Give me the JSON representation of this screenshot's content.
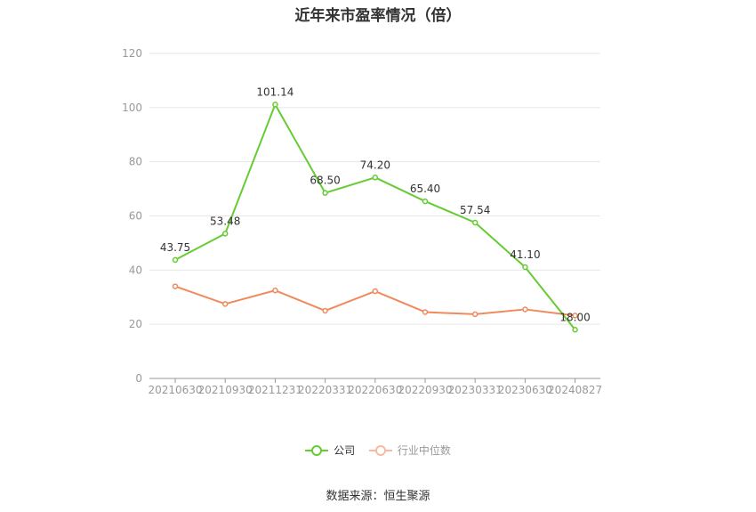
{
  "chart_data": {
    "type": "line",
    "title": "近年来市盈率情况（倍）",
    "categories": [
      "20210630",
      "20210930",
      "20211231",
      "20220331",
      "20220630",
      "20220930",
      "20230331",
      "20230630",
      "20240827"
    ],
    "series": [
      {
        "name": "公司",
        "values": [
          43.75,
          53.48,
          101.14,
          68.5,
          74.2,
          65.4,
          57.54,
          41.1,
          18.0
        ],
        "labels": [
          "43.75",
          "53.48",
          "101.14",
          "68.50",
          "74.20",
          "65.40",
          "57.54",
          "41.10",
          "18.00"
        ],
        "color": "#66cc33"
      },
      {
        "name": "行业中位数",
        "values": [
          34,
          27.5,
          32.5,
          25,
          32.2,
          24.5,
          23.7,
          25.5,
          23.2
        ],
        "color": "#f08a5d"
      }
    ],
    "ylim": [
      0,
      120
    ],
    "yticks": [
      "0",
      "20",
      "40",
      "60",
      "80",
      "100",
      "120"
    ],
    "grid": true,
    "legend_position": "bottom"
  },
  "footer": {
    "source": "数据来源：恒生聚源"
  }
}
